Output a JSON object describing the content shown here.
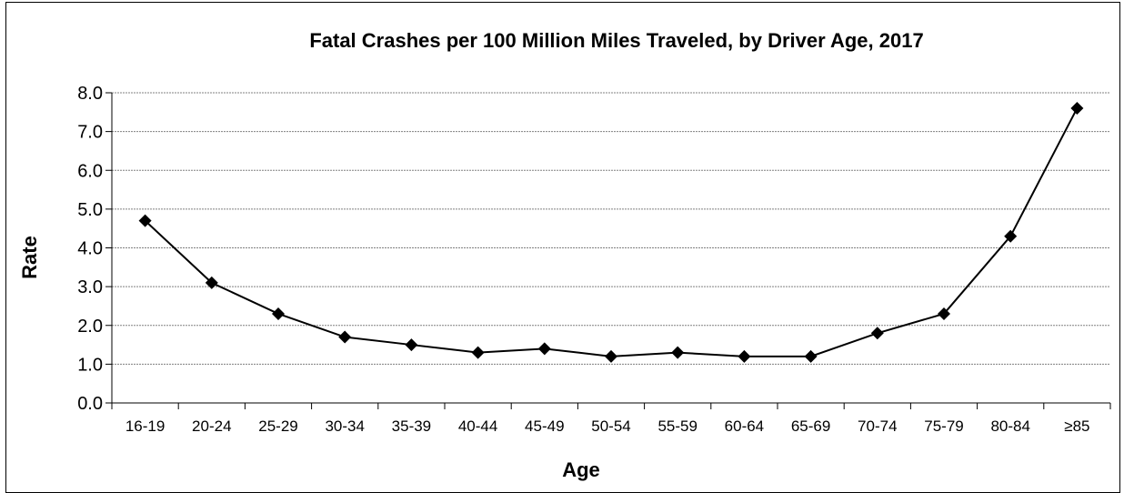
{
  "chart_data": {
    "type": "line",
    "title": "Fatal Crashes per 100 Million Miles Traveled, by Driver Age, 2017",
    "xlabel": "Age",
    "ylabel": "Rate",
    "categories": [
      "16-19",
      "20-24",
      "25-29",
      "30-34",
      "35-39",
      "40-44",
      "45-49",
      "50-54",
      "55-59",
      "60-64",
      "65-69",
      "70-74",
      "75-79",
      "80-84",
      "≥85"
    ],
    "values": [
      4.7,
      3.1,
      2.3,
      1.7,
      1.5,
      1.3,
      1.4,
      1.2,
      1.3,
      1.2,
      1.2,
      1.8,
      2.3,
      4.3,
      7.6
    ],
    "ylim": [
      0,
      8
    ],
    "yticks": [
      "0.0",
      "1.0",
      "2.0",
      "3.0",
      "4.0",
      "5.0",
      "6.0",
      "7.0",
      "8.0"
    ],
    "grid": true,
    "legend": "none",
    "marker": "diamond",
    "line_color": "#000000",
    "grid_color": "#808080"
  }
}
